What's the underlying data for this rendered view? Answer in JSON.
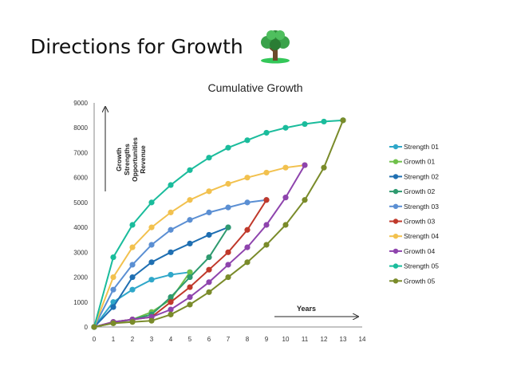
{
  "slide": {
    "title": "Directions for Growth",
    "logo_icon": "tree-icon"
  },
  "chart_data": {
    "type": "line",
    "title": "Cumulative Growth",
    "xlabel": "",
    "ylabel": "",
    "xlim": [
      0,
      14
    ],
    "ylim": [
      0,
      9000
    ],
    "xticks": [
      0,
      1,
      2,
      3,
      4,
      5,
      6,
      7,
      8,
      9,
      10,
      11,
      12,
      13,
      14
    ],
    "yticks": [
      0,
      1000,
      2000,
      3000,
      4000,
      5000,
      6000,
      7000,
      8000,
      9000
    ],
    "grid": false,
    "legend": "right",
    "annotations": {
      "y_arrow_label": [
        "Growth",
        "Strengths",
        "Opportunities",
        "Revenue"
      ],
      "x_arrow_label": "Years"
    },
    "series": [
      {
        "name": "Strength 01",
        "color": "#2FA7C9",
        "x": [
          0,
          1,
          2,
          3,
          4,
          5
        ],
        "y": [
          0,
          1000,
          1500,
          1900,
          2100,
          2200
        ]
      },
      {
        "name": "Growth 01",
        "color": "#6FC04A",
        "x": [
          0,
          1,
          2,
          3,
          4,
          5
        ],
        "y": [
          0,
          150,
          300,
          600,
          1100,
          2200
        ]
      },
      {
        "name": "Strength 02",
        "color": "#1F6FB2",
        "x": [
          0,
          1,
          2,
          3,
          4,
          5,
          6,
          7
        ],
        "y": [
          0,
          800,
          2000,
          2600,
          3000,
          3350,
          3700,
          4000
        ]
      },
      {
        "name": "Growth 02",
        "color": "#2E9A6F",
        "x": [
          0,
          1,
          2,
          3,
          4,
          5,
          6,
          7
        ],
        "y": [
          0,
          200,
          300,
          500,
          1200,
          2000,
          2800,
          4000
        ]
      },
      {
        "name": "Strength 03",
        "color": "#5B8FD3",
        "x": [
          0,
          1,
          2,
          3,
          4,
          5,
          6,
          7,
          8,
          9
        ],
        "y": [
          0,
          1500,
          2500,
          3300,
          3900,
          4300,
          4600,
          4800,
          5000,
          5100
        ]
      },
      {
        "name": "Growth 03",
        "color": "#C0392B",
        "x": [
          0,
          1,
          2,
          3,
          4,
          5,
          6,
          7,
          8,
          9
        ],
        "y": [
          0,
          200,
          300,
          400,
          1000,
          1600,
          2300,
          3000,
          3900,
          5100
        ]
      },
      {
        "name": "Strength 04",
        "color": "#F2C14E",
        "x": [
          0,
          1,
          2,
          3,
          4,
          5,
          6,
          7,
          8,
          9,
          10,
          11
        ],
        "y": [
          0,
          2000,
          3200,
          4000,
          4600,
          5100,
          5450,
          5750,
          6000,
          6200,
          6400,
          6500
        ]
      },
      {
        "name": "Growth 04",
        "color": "#8E44AD",
        "x": [
          0,
          1,
          2,
          3,
          4,
          5,
          6,
          7,
          8,
          9,
          10,
          11
        ],
        "y": [
          0,
          200,
          300,
          400,
          700,
          1200,
          1800,
          2500,
          3200,
          4100,
          5200,
          6500
        ]
      },
      {
        "name": "Strength 05",
        "color": "#1ABC9C",
        "x": [
          0,
          1,
          2,
          3,
          4,
          5,
          6,
          7,
          8,
          9,
          10,
          11,
          12,
          13
        ],
        "y": [
          0,
          2800,
          4100,
          5000,
          5700,
          6300,
          6800,
          7200,
          7500,
          7800,
          8000,
          8150,
          8250,
          8300
        ]
      },
      {
        "name": "Growth 05",
        "color": "#7A8B2A",
        "x": [
          0,
          1,
          2,
          3,
          4,
          5,
          6,
          7,
          8,
          9,
          10,
          11,
          12,
          13
        ],
        "y": [
          0,
          150,
          200,
          250,
          500,
          900,
          1400,
          2000,
          2600,
          3300,
          4100,
          5100,
          6400,
          8300
        ]
      }
    ]
  }
}
